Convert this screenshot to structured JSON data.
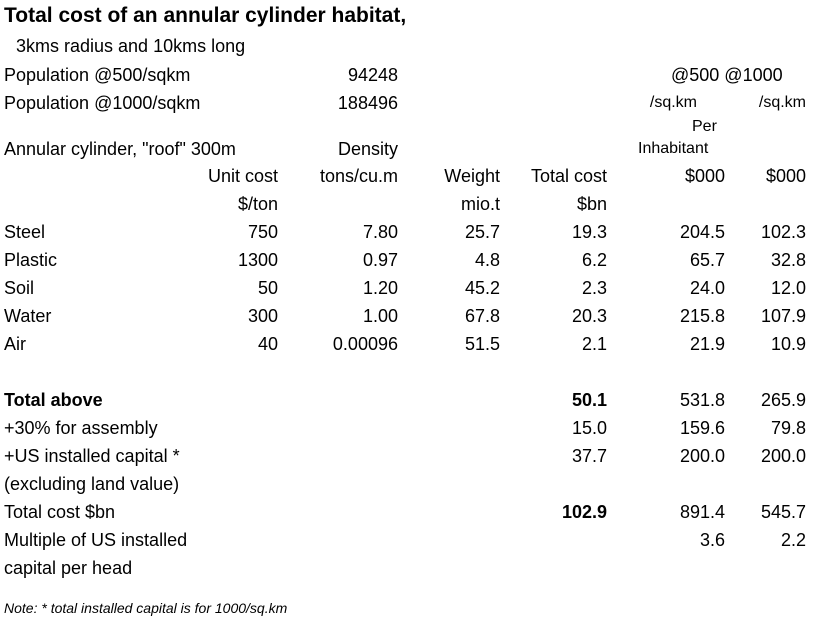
{
  "title": "Total cost of an annular cylinder habitat,",
  "subtitle": "3kms radius  and 10kms long",
  "population": [
    {
      "label": "Population @500/sqkm",
      "value": "94248"
    },
    {
      "label": "Population @1000/sqkm",
      "value": "188496"
    }
  ],
  "per_head_header": {
    "top": "@500 @1000",
    "col5_unit": "/sq.km",
    "col6_unit": "/sq.km",
    "per": "Per",
    "inhabitant": "Inhabitant"
  },
  "section_label": "Annular cylinder, \"roof\" 300m",
  "columns": {
    "density": "Density",
    "unit_cost": "Unit cost",
    "tons_cum": "tons/cu.m",
    "weight": "Weight",
    "total_cost": "Total cost",
    "k500": "$000",
    "k1000": "$000",
    "per_ton": "$/ton",
    "miot": "mio.t",
    "bn": "$bn"
  },
  "materials": [
    {
      "name": "Steel",
      "unit_cost": "750",
      "density": "7.80",
      "weight": "25.7",
      "total_cost": "19.3",
      "p500": "204.5",
      "p1000": "102.3"
    },
    {
      "name": "Plastic",
      "unit_cost": "1300",
      "density": "0.97",
      "weight": "4.8",
      "total_cost": "6.2",
      "p500": "65.7",
      "p1000": "32.8"
    },
    {
      "name": "Soil",
      "unit_cost": "50",
      "density": "1.20",
      "weight": "45.2",
      "total_cost": "2.3",
      "p500": "24.0",
      "p1000": "12.0"
    },
    {
      "name": "Water",
      "unit_cost": "300",
      "density": "1.00",
      "weight": "67.8",
      "total_cost": "20.3",
      "p500": "215.8",
      "p1000": "107.9"
    },
    {
      "name": "Air",
      "unit_cost": "40",
      "density": "0.00096",
      "weight": "51.5",
      "total_cost": "2.1",
      "p500": "21.9",
      "p1000": "10.9"
    }
  ],
  "summary": [
    {
      "label": "Total above",
      "total_cost": "50.1",
      "p500": "531.8",
      "p1000": "265.9"
    },
    {
      "label": "+30% for assembly",
      "total_cost": "15.0",
      "p500": "159.6",
      "p1000": "79.8"
    },
    {
      "label": "+US installed capital *",
      "total_cost": "37.7",
      "p500": "200.0",
      "p1000": "200.0"
    },
    {
      "label": "(excluding land value)"
    },
    {
      "label": "Total cost $bn",
      "total_cost": "102.9",
      "p500": "891.4",
      "p1000": "545.7"
    },
    {
      "label": "Multiple of US installed",
      "p500": "3.6",
      "p1000": "2.2"
    },
    {
      "label": "capital per head"
    }
  ],
  "note": "Note: * total installed capital is for 1000/sq.km"
}
